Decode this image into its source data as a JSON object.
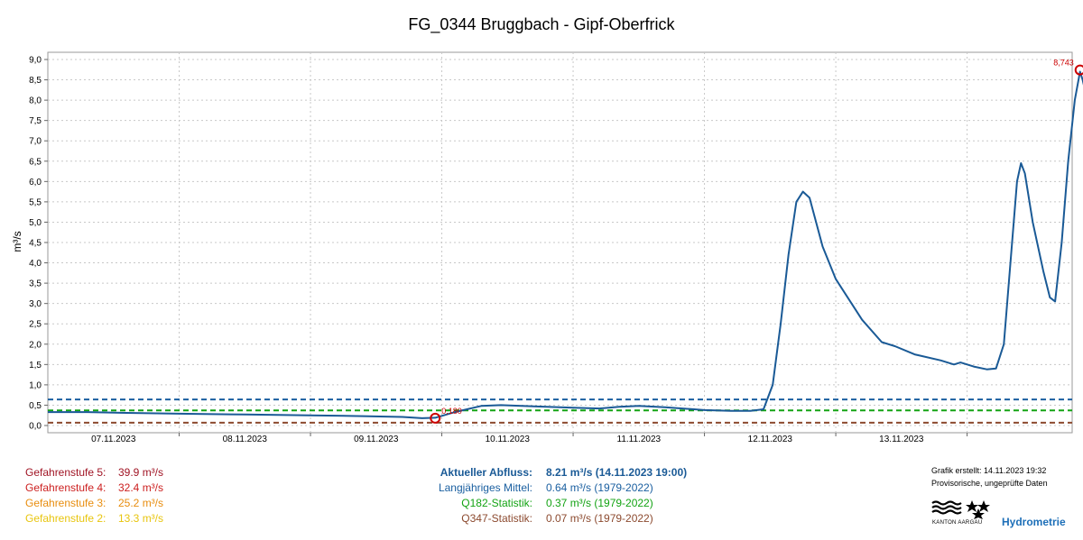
{
  "chart_data": {
    "type": "line",
    "title": "FG_0344  Bruggbach - Gipf-Oberfrick",
    "ylabel": "m³/s",
    "ylim": [
      0,
      9.2
    ],
    "yticks": [
      "0,0",
      "0,5",
      "1,0",
      "1,5",
      "2,0",
      "2,5",
      "3,0",
      "3,5",
      "4,0",
      "4,5",
      "5,0",
      "5,5",
      "6,0",
      "6,5",
      "7,0",
      "7,5",
      "8,0",
      "8,5",
      "9,0"
    ],
    "xrange": [
      0,
      7.8
    ],
    "xticks": [
      {
        "x": 0.5,
        "label": "07.11.2023"
      },
      {
        "x": 1.5,
        "label": "08.11.2023"
      },
      {
        "x": 2.5,
        "label": "09.11.2023"
      },
      {
        "x": 3.5,
        "label": "10.11.2023"
      },
      {
        "x": 4.5,
        "label": "11.11.2023"
      },
      {
        "x": 5.5,
        "label": "12.11.2023"
      },
      {
        "x": 6.5,
        "label": "13.11.2023"
      }
    ],
    "grid": true,
    "series": [
      {
        "name": "Abfluss",
        "color": "#1a5a96",
        "points": [
          [
            0,
            0.33
          ],
          [
            0.3,
            0.33
          ],
          [
            0.6,
            0.31
          ],
          [
            1.0,
            0.29
          ],
          [
            1.5,
            0.27
          ],
          [
            2.0,
            0.25
          ],
          [
            2.4,
            0.23
          ],
          [
            2.7,
            0.21
          ],
          [
            2.85,
            0.18
          ],
          [
            2.95,
            0.19
          ],
          [
            3.1,
            0.33
          ],
          [
            3.3,
            0.48
          ],
          [
            3.45,
            0.5
          ],
          [
            3.7,
            0.47
          ],
          [
            4.0,
            0.44
          ],
          [
            4.2,
            0.42
          ],
          [
            4.35,
            0.46
          ],
          [
            4.5,
            0.48
          ],
          [
            4.7,
            0.45
          ],
          [
            5.0,
            0.38
          ],
          [
            5.2,
            0.36
          ],
          [
            5.35,
            0.36
          ],
          [
            5.45,
            0.4
          ],
          [
            5.52,
            1.0
          ],
          [
            5.58,
            2.5
          ],
          [
            5.64,
            4.2
          ],
          [
            5.7,
            5.5
          ],
          [
            5.75,
            5.75
          ],
          [
            5.8,
            5.6
          ],
          [
            5.9,
            4.4
          ],
          [
            6.0,
            3.6
          ],
          [
            6.08,
            3.2
          ],
          [
            6.2,
            2.6
          ],
          [
            6.35,
            2.05
          ],
          [
            6.45,
            1.95
          ],
          [
            6.6,
            1.75
          ],
          [
            6.8,
            1.6
          ],
          [
            6.9,
            1.5
          ],
          [
            6.95,
            1.55
          ],
          [
            7.05,
            1.45
          ],
          [
            7.15,
            1.38
          ],
          [
            7.22,
            1.4
          ],
          [
            7.28,
            2.0
          ],
          [
            7.33,
            4.0
          ],
          [
            7.38,
            6.0
          ],
          [
            7.41,
            6.45
          ],
          [
            7.44,
            6.2
          ],
          [
            7.5,
            5.0
          ],
          [
            7.58,
            3.8
          ],
          [
            7.63,
            3.15
          ],
          [
            7.67,
            3.05
          ],
          [
            7.72,
            4.5
          ],
          [
            7.77,
            6.5
          ],
          [
            7.82,
            8.0
          ],
          [
            7.86,
            8.7
          ],
          [
            7.88,
            8.5
          ],
          [
            7.9,
            8.21
          ]
        ]
      }
    ],
    "reference_lines": [
      {
        "name": "Langjähriges Mittel",
        "value": 0.64,
        "color": "#1a5fa0"
      },
      {
        "name": "Q182-Statistik",
        "value": 0.37,
        "color": "#13a313"
      },
      {
        "name": "Q347-Statistik",
        "value": 0.07,
        "color": "#8c4a2f"
      }
    ],
    "annotations": [
      {
        "x": 2.95,
        "y": 0.18,
        "label": "0,180",
        "color": "#cc0000"
      },
      {
        "x": 7.86,
        "y": 8.743,
        "label": "8,743",
        "color": "#cc0000"
      }
    ]
  },
  "gefahrenstufen": [
    {
      "label": "Gefahrenstufe 5:",
      "value": "39.9 m³/s",
      "color": "#a01424"
    },
    {
      "label": "Gefahrenstufe 4:",
      "value": "32.4 m³/s",
      "color": "#cc1f1f"
    },
    {
      "label": "Gefahrenstufe 3:",
      "value": "25.2 m³/s",
      "color": "#e88d0e"
    },
    {
      "label": "Gefahrenstufe 2:",
      "value": "13.3 m³/s",
      "color": "#e8c50e"
    }
  ],
  "info": [
    {
      "label": "Aktueller Abfluss:",
      "value": "8.21 m³/s (14.11.2023 19:00)",
      "color": "#1a5a96",
      "bold": true
    },
    {
      "label": "Langjähriges Mittel:",
      "value": "0.64 m³/s (1979-2022)",
      "color": "#1a5fa0",
      "bold": false
    },
    {
      "label": "Q182-Statistik:",
      "value": "0.37 m³/s (1979-2022)",
      "color": "#13a313",
      "bold": false
    },
    {
      "label": "Q347-Statistik:",
      "value": "0.07 m³/s (1979-2022)",
      "color": "#8c4a2f",
      "bold": false
    }
  ],
  "footer": {
    "created": "Grafik erstellt: 14.11.2023 19:32",
    "provisional": "Provisorische, ungeprüfte Daten",
    "logo_text": "KANTON AARGAU",
    "brand": "Hydrometrie"
  }
}
